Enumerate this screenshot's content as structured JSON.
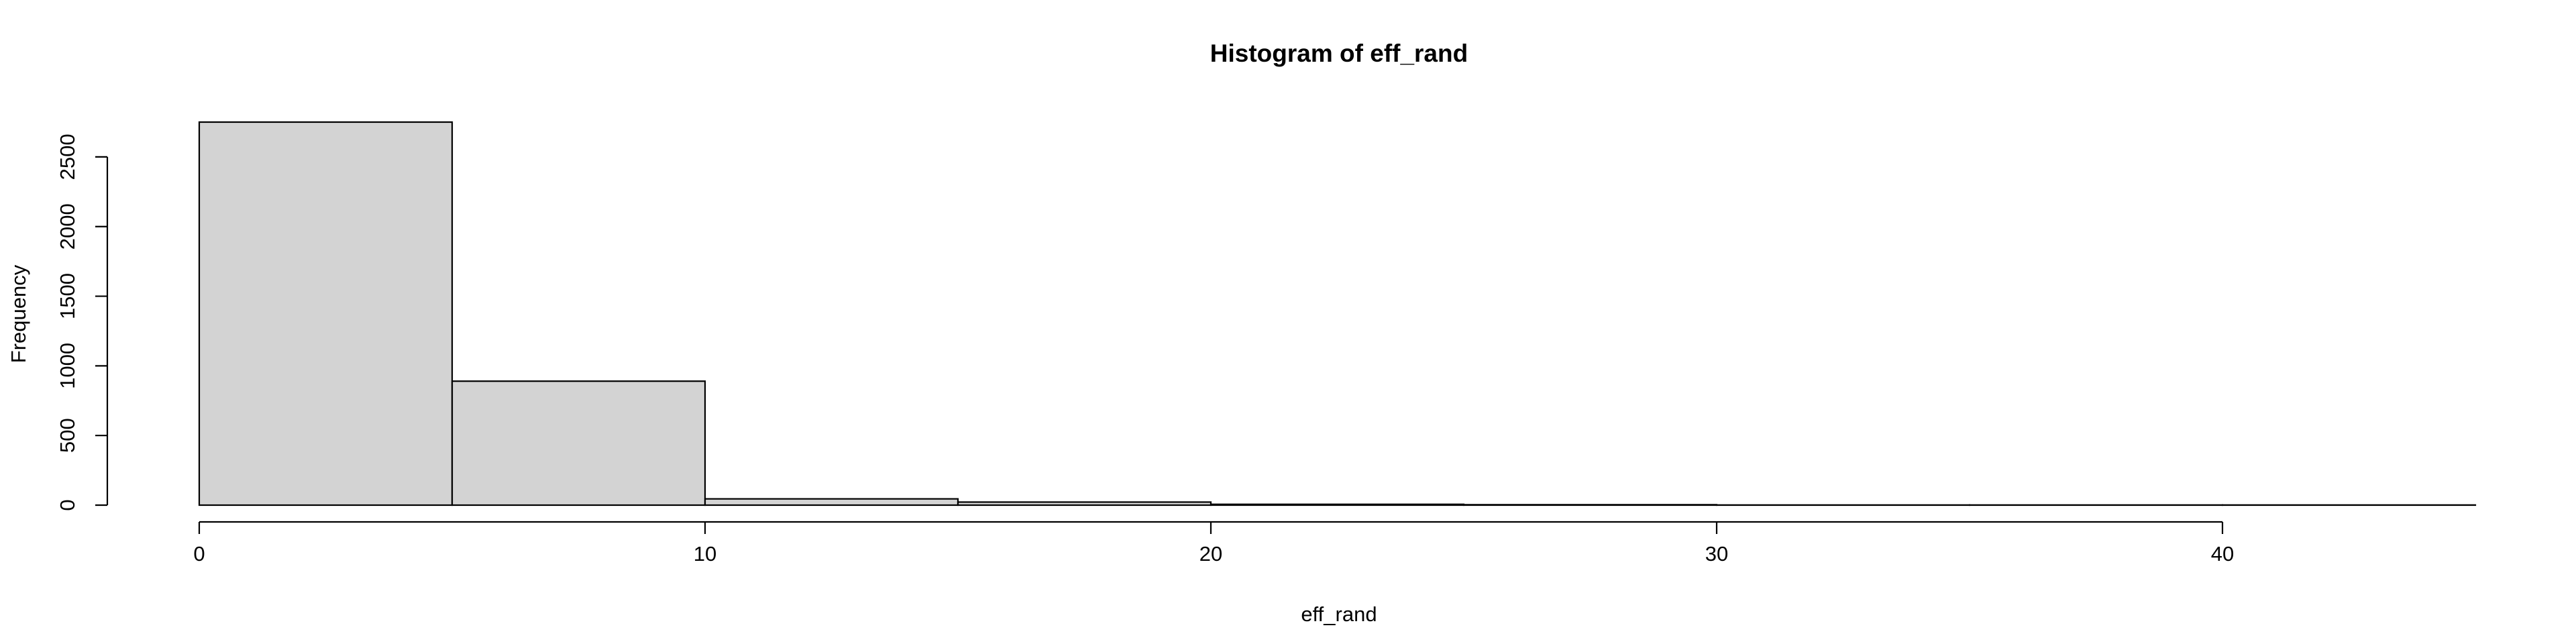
{
  "chart_data": {
    "type": "bar",
    "title": "Histogram of eff_rand",
    "xlabel": "eff_rand",
    "ylabel": "Frequency",
    "bins": [
      {
        "x0": 0,
        "x1": 5,
        "count": 2750
      },
      {
        "x0": 5,
        "x1": 10,
        "count": 890
      },
      {
        "x0": 10,
        "x1": 15,
        "count": 45
      },
      {
        "x0": 15,
        "x1": 20,
        "count": 22
      },
      {
        "x0": 20,
        "x1": 25,
        "count": 6
      },
      {
        "x0": 25,
        "x1": 30,
        "count": 3
      },
      {
        "x0": 30,
        "x1": 35,
        "count": 1
      },
      {
        "x0": 35,
        "x1": 40,
        "count": 1
      },
      {
        "x0": 40,
        "x1": 45,
        "count": 1
      }
    ],
    "xlim": [
      0,
      45
    ],
    "ylim": [
      0,
      2750
    ],
    "x_ticks": [
      0,
      10,
      20,
      30,
      40
    ],
    "y_ticks": [
      0,
      500,
      1000,
      1500,
      2000,
      2500
    ],
    "bar_fill": "#d3d3d3",
    "bar_stroke": "#000000",
    "grid": false,
    "legend": "none"
  }
}
